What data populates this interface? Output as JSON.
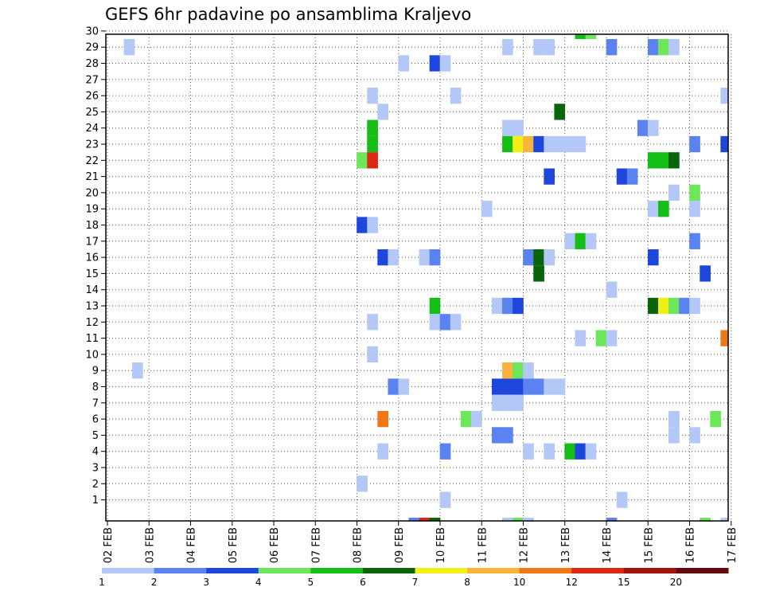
{
  "chart_data": {
    "type": "heatmap",
    "title": "GEFS 6hr padavine po ansamblima Kraljevo",
    "xlabel": "",
    "ylabel": "",
    "x_tick_labels": [
      "02 FEB",
      "03 FEB",
      "04 FEB",
      "05 FEB",
      "06 FEB",
      "07 FEB",
      "08 FEB",
      "09 FEB",
      "10 FEB",
      "11 FEB",
      "12 FEB",
      "13 FEB",
      "14 FEB",
      "15 FEB",
      "16 FEB",
      "17 FEB"
    ],
    "y_tick_labels": [
      "1",
      "2",
      "3",
      "4",
      "5",
      "6",
      "7",
      "8",
      "9",
      "10",
      "11",
      "12",
      "13",
      "14",
      "15",
      "16",
      "17",
      "18",
      "19",
      "20",
      "21",
      "22",
      "23",
      "24",
      "25",
      "26",
      "27",
      "28",
      "29",
      "30"
    ],
    "xlim": [
      0,
      60
    ],
    "ylim": [
      0,
      30
    ],
    "grid": true,
    "colorbar": {
      "levels": [
        "1",
        "2",
        "3",
        "4",
        "5",
        "6",
        "7",
        "8",
        "10",
        "12",
        "15",
        "20"
      ],
      "colors": [
        "#b4c8f8",
        "#5a82f0",
        "#1e46dc",
        "#6ee65a",
        "#14be14",
        "#0a640a",
        "#f0f014",
        "#fab43c",
        "#f07814",
        "#dc2814",
        "#a0140a",
        "#640a0a"
      ]
    },
    "cells": [
      {
        "day": 0.4,
        "member": 29,
        "v": 1
      },
      {
        "day": 0.6,
        "member": 9,
        "v": 1
      },
      {
        "day": 6.0,
        "member": 22,
        "v": 4
      },
      {
        "day": 6.0,
        "member": 18,
        "v": 3
      },
      {
        "day": 6.0,
        "member": 2,
        "v": 1
      },
      {
        "day": 6.25,
        "member": 26,
        "v": 1
      },
      {
        "day": 6.25,
        "member": 24,
        "v": 5
      },
      {
        "day": 6.25,
        "member": 23,
        "v": 5
      },
      {
        "day": 6.25,
        "member": 22,
        "v": 13
      },
      {
        "day": 6.25,
        "member": 18,
        "v": 1
      },
      {
        "day": 6.25,
        "member": 12,
        "v": 1
      },
      {
        "day": 6.25,
        "member": 10,
        "v": 1
      },
      {
        "day": 6.5,
        "member": 25,
        "v": 1
      },
      {
        "day": 6.5,
        "member": 16,
        "v": 3
      },
      {
        "day": 6.5,
        "member": 6,
        "v": 11
      },
      {
        "day": 6.5,
        "member": 4,
        "v": 1
      },
      {
        "day": 6.75,
        "member": 16,
        "v": 1
      },
      {
        "day": 6.75,
        "member": 8,
        "v": 2
      },
      {
        "day": 7.0,
        "member": 28,
        "v": 1
      },
      {
        "day": 7.0,
        "member": 8,
        "v": 1
      },
      {
        "day": 7.25,
        "member": -0.6,
        "v": 2
      },
      {
        "day": 7.5,
        "member": 16,
        "v": 1
      },
      {
        "day": 7.5,
        "member": -0.6,
        "v": 13
      },
      {
        "day": 7.75,
        "member": 28,
        "v": 3
      },
      {
        "day": 7.75,
        "member": 16,
        "v": 2
      },
      {
        "day": 7.75,
        "member": 13,
        "v": 5
      },
      {
        "day": 7.75,
        "member": 12,
        "v": 1
      },
      {
        "day": 7.75,
        "member": -0.6,
        "v": 6
      },
      {
        "day": 8.0,
        "member": 28,
        "v": 1
      },
      {
        "day": 8.0,
        "member": 12,
        "v": 2
      },
      {
        "day": 8.0,
        "member": 4,
        "v": 2
      },
      {
        "day": 8.0,
        "member": 1,
        "v": 1
      },
      {
        "day": 8.25,
        "member": 26,
        "v": 1
      },
      {
        "day": 8.25,
        "member": 12,
        "v": 1
      },
      {
        "day": 8.5,
        "member": 6,
        "v": 4
      },
      {
        "day": 8.75,
        "member": 6,
        "v": 1
      },
      {
        "day": 9.0,
        "member": 19,
        "v": 1
      },
      {
        "day": 9.25,
        "member": 13,
        "v": 1
      },
      {
        "day": 9.25,
        "member": 8,
        "v": 3
      },
      {
        "day": 9.25,
        "member": 7,
        "v": 1
      },
      {
        "day": 9.25,
        "member": 5,
        "v": 2
      },
      {
        "day": 9.5,
        "member": 29,
        "v": 1
      },
      {
        "day": 9.5,
        "member": 24,
        "v": 1
      },
      {
        "day": 9.5,
        "member": 23,
        "v": 5
      },
      {
        "day": 9.5,
        "member": 13,
        "v": 2
      },
      {
        "day": 9.5,
        "member": 9,
        "v": 9
      },
      {
        "day": 9.5,
        "member": 8,
        "v": 3
      },
      {
        "day": 9.5,
        "member": 7,
        "v": 1
      },
      {
        "day": 9.5,
        "member": 5,
        "v": 2
      },
      {
        "day": 9.5,
        "member": -0.6,
        "v": 1
      },
      {
        "day": 9.75,
        "member": 24,
        "v": 1
      },
      {
        "day": 9.75,
        "member": 23,
        "v": 7
      },
      {
        "day": 9.75,
        "member": 13,
        "v": 3
      },
      {
        "day": 9.75,
        "member": 9,
        "v": 4
      },
      {
        "day": 9.75,
        "member": 8,
        "v": 3
      },
      {
        "day": 9.75,
        "member": 7,
        "v": 1
      },
      {
        "day": 9.75,
        "member": -0.6,
        "v": 4
      },
      {
        "day": 10.0,
        "member": 23,
        "v": 9
      },
      {
        "day": 10.0,
        "member": 16,
        "v": 2
      },
      {
        "day": 10.0,
        "member": 9,
        "v": 1
      },
      {
        "day": 10.0,
        "member": 8,
        "v": 2
      },
      {
        "day": 10.0,
        "member": 4,
        "v": 1
      },
      {
        "day": 10.0,
        "member": -0.6,
        "v": 1
      },
      {
        "day": 10.25,
        "member": 29,
        "v": 1
      },
      {
        "day": 10.25,
        "member": 23,
        "v": 3
      },
      {
        "day": 10.25,
        "member": 16,
        "v": 6
      },
      {
        "day": 10.25,
        "member": 15,
        "v": 6
      },
      {
        "day": 10.25,
        "member": 8,
        "v": 2
      },
      {
        "day": 10.5,
        "member": 29,
        "v": 1
      },
      {
        "day": 10.5,
        "member": 23,
        "v": 1
      },
      {
        "day": 10.5,
        "member": 21,
        "v": 3
      },
      {
        "day": 10.5,
        "member": 16,
        "v": 1
      },
      {
        "day": 10.5,
        "member": 8,
        "v": 1
      },
      {
        "day": 10.5,
        "member": 4,
        "v": 1
      },
      {
        "day": 10.75,
        "member": 25,
        "v": 6
      },
      {
        "day": 10.75,
        "member": 23,
        "v": 1
      },
      {
        "day": 10.75,
        "member": 8,
        "v": 1
      },
      {
        "day": 11.0,
        "member": 23,
        "v": 1
      },
      {
        "day": 11.0,
        "member": 17,
        "v": 1
      },
      {
        "day": 11.0,
        "member": 4,
        "v": 5
      },
      {
        "day": 11.25,
        "member": 30,
        "v": 5
      },
      {
        "day": 11.25,
        "member": 23,
        "v": 1
      },
      {
        "day": 11.25,
        "member": 17,
        "v": 5
      },
      {
        "day": 11.25,
        "member": 11,
        "v": 1
      },
      {
        "day": 11.25,
        "member": 4,
        "v": 3
      },
      {
        "day": 11.5,
        "member": 30,
        "v": 4
      },
      {
        "day": 11.5,
        "member": 17,
        "v": 1
      },
      {
        "day": 11.5,
        "member": 4,
        "v": 1
      },
      {
        "day": 11.75,
        "member": 11,
        "v": 4
      },
      {
        "day": 12.0,
        "member": 29,
        "v": 2
      },
      {
        "day": 12.0,
        "member": 14,
        "v": 1
      },
      {
        "day": 12.0,
        "member": 11,
        "v": 1
      },
      {
        "day": 12.0,
        "member": -0.6,
        "v": 2
      },
      {
        "day": 12.25,
        "member": 21,
        "v": 3
      },
      {
        "day": 12.25,
        "member": 1,
        "v": 1
      },
      {
        "day": 12.5,
        "member": 21,
        "v": 2
      },
      {
        "day": 12.75,
        "member": 24,
        "v": 2
      },
      {
        "day": 13.0,
        "member": 29,
        "v": 2
      },
      {
        "day": 13.0,
        "member": 24,
        "v": 1
      },
      {
        "day": 13.0,
        "member": 22,
        "v": 5
      },
      {
        "day": 13.0,
        "member": 19,
        "v": 1
      },
      {
        "day": 13.0,
        "member": 16,
        "v": 3
      },
      {
        "day": 13.0,
        "member": 13,
        "v": 6
      },
      {
        "day": 13.25,
        "member": 29,
        "v": 4
      },
      {
        "day": 13.25,
        "member": 22,
        "v": 5
      },
      {
        "day": 13.25,
        "member": 19,
        "v": 5
      },
      {
        "day": 13.25,
        "member": 13,
        "v": 7
      },
      {
        "day": 13.5,
        "member": 29,
        "v": 1
      },
      {
        "day": 13.5,
        "member": 22,
        "v": 6
      },
      {
        "day": 13.5,
        "member": 20,
        "v": 1
      },
      {
        "day": 13.5,
        "member": 13,
        "v": 4
      },
      {
        "day": 13.5,
        "member": 6,
        "v": 1
      },
      {
        "day": 13.5,
        "member": 5,
        "v": 1
      },
      {
        "day": 13.75,
        "member": 13,
        "v": 2
      },
      {
        "day": 14.0,
        "member": 23,
        "v": 2
      },
      {
        "day": 14.0,
        "member": 20,
        "v": 4
      },
      {
        "day": 14.0,
        "member": 19,
        "v": 1
      },
      {
        "day": 14.0,
        "member": 17,
        "v": 2
      },
      {
        "day": 14.0,
        "member": 13,
        "v": 1
      },
      {
        "day": 14.0,
        "member": 5,
        "v": 1
      },
      {
        "day": 14.25,
        "member": 15,
        "v": 3
      },
      {
        "day": 14.25,
        "member": -0.6,
        "v": 4
      },
      {
        "day": 14.5,
        "member": 6,
        "v": 4
      },
      {
        "day": 14.75,
        "member": 26,
        "v": 1
      },
      {
        "day": 14.75,
        "member": 23,
        "v": 3
      },
      {
        "day": 14.75,
        "member": 11,
        "v": 11
      },
      {
        "day": 14.75,
        "member": -0.6,
        "v": 1
      }
    ]
  }
}
